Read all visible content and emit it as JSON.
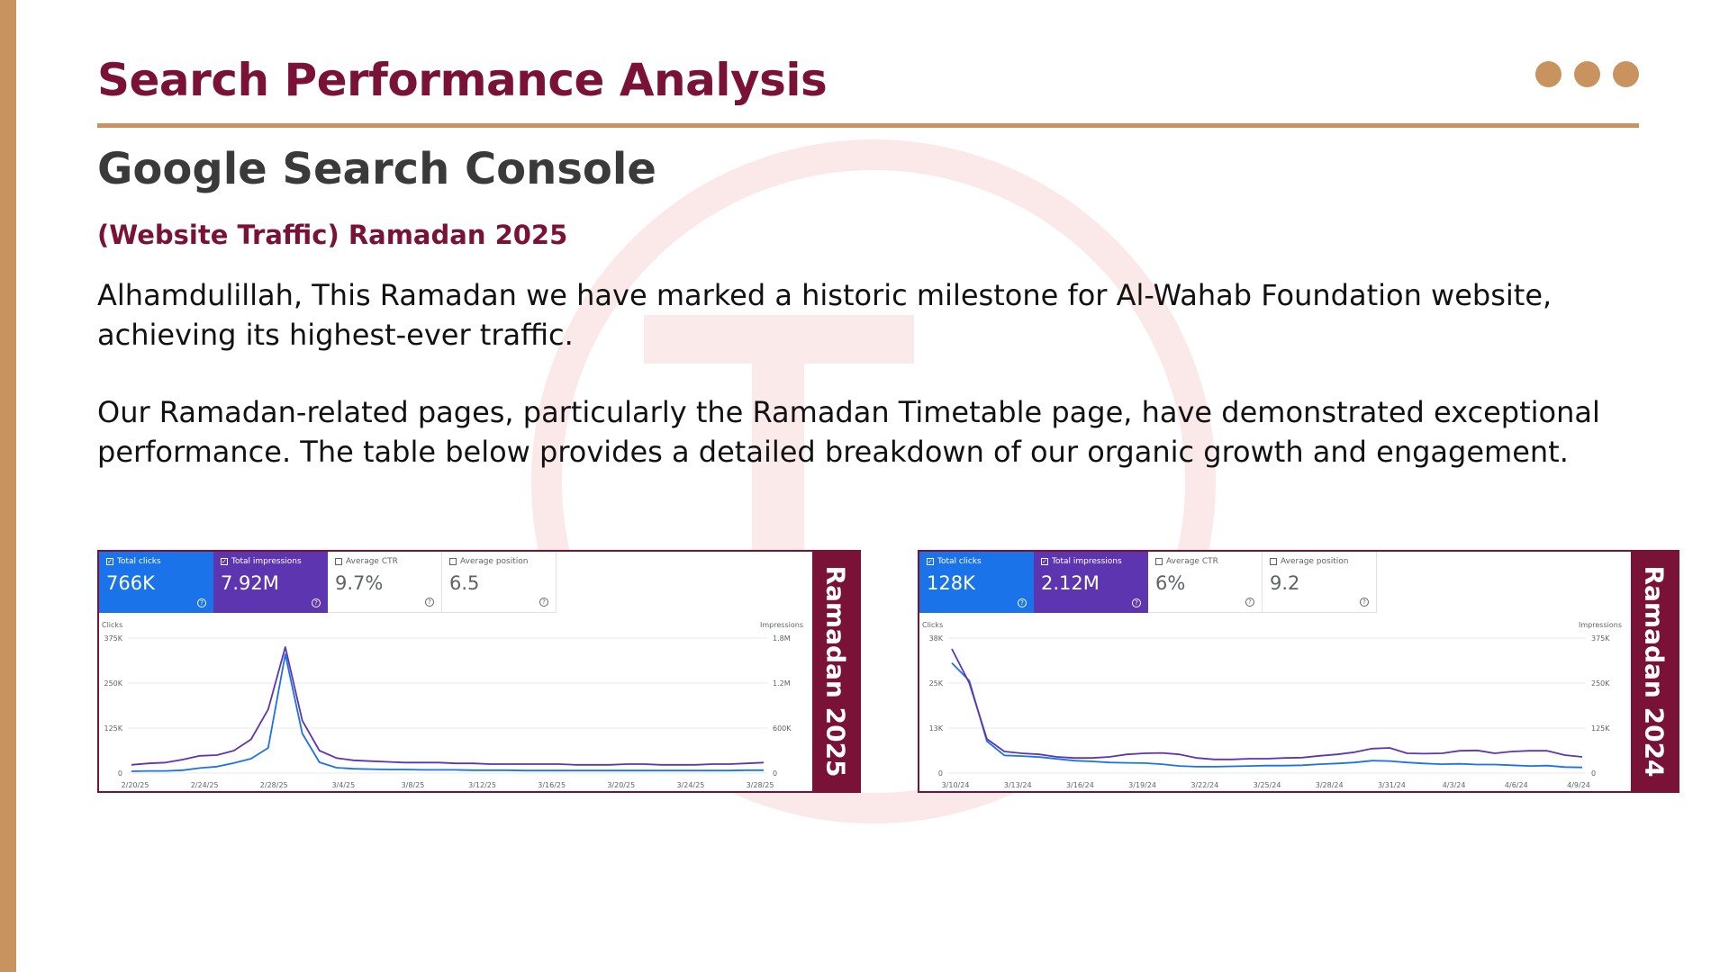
{
  "header": {
    "title": "Search Performance Analysis",
    "subtitle": "Google Search Console",
    "tag": "(Website Traffic) Ramadan 2025"
  },
  "paragraphs": [
    "Alhamdulillah, This Ramadan we have marked a historic milestone for Al-Wahab Foundation website, achieving its highest-ever traffic.",
    "Our Ramadan-related pages, particularly the Ramadan Timetable page, have demonstrated exceptional performance. The table below provides a detailed breakdown of our organic growth and engagement."
  ],
  "colors": {
    "accent": "#7a1238",
    "gold": "#c8935f",
    "clicks": "#1a73e8",
    "impressions": "#5e35b1"
  },
  "panels": [
    {
      "side_label": "Ramadan 2025",
      "metrics": [
        {
          "label": "Total clicks",
          "value": "766K",
          "checked": true
        },
        {
          "label": "Total impressions",
          "value": "7.92M",
          "checked": true
        },
        {
          "label": "Average CTR",
          "value": "9.7%",
          "checked": false
        },
        {
          "label": "Average position",
          "value": "6.5",
          "checked": false
        }
      ]
    },
    {
      "side_label": "Ramadan 2024",
      "metrics": [
        {
          "label": "Total clicks",
          "value": "128K",
          "checked": true
        },
        {
          "label": "Total impressions",
          "value": "2.12M",
          "checked": true
        },
        {
          "label": "Average CTR",
          "value": "6%",
          "checked": false
        },
        {
          "label": "Average position",
          "value": "9.2",
          "checked": false
        }
      ]
    }
  ],
  "chart_data": [
    {
      "type": "line",
      "left_axis": {
        "label": "Clicks",
        "ticks": [
          "375K",
          "250K",
          "125K",
          "0"
        ],
        "ylim": [
          0,
          375000
        ]
      },
      "right_axis": {
        "label": "Impressions",
        "ticks": [
          "1.8M",
          "1.2M",
          "600K",
          "0"
        ],
        "ylim": [
          0,
          1800000
        ]
      },
      "x_ticks": [
        "2/20/25",
        "2/24/25",
        "2/28/25",
        "3/4/25",
        "3/8/25",
        "3/12/25",
        "3/16/25",
        "3/20/25",
        "3/24/25",
        "3/28/25"
      ],
      "series": [
        {
          "name": "Total clicks",
          "axis": "left",
          "values": [
            5000,
            6000,
            6000,
            8000,
            14000,
            18000,
            28000,
            40000,
            70000,
            330000,
            110000,
            30000,
            15000,
            12000,
            11000,
            10000,
            10000,
            9000,
            9000,
            9000,
            8000,
            8000,
            8000,
            7000,
            7000,
            7000,
            7000,
            7000,
            7000,
            7000,
            7000,
            7000,
            7000,
            7000,
            7000,
            7000,
            8000,
            8000
          ]
        },
        {
          "name": "Total impressions",
          "axis": "right",
          "values": [
            110000,
            130000,
            140000,
            180000,
            230000,
            240000,
            300000,
            450000,
            850000,
            1680000,
            700000,
            300000,
            200000,
            170000,
            160000,
            150000,
            140000,
            140000,
            140000,
            130000,
            130000,
            120000,
            120000,
            120000,
            120000,
            120000,
            110000,
            110000,
            110000,
            120000,
            120000,
            110000,
            110000,
            110000,
            120000,
            120000,
            130000,
            140000
          ]
        }
      ]
    },
    {
      "type": "line",
      "left_axis": {
        "label": "Clicks",
        "ticks": [
          "38K",
          "25K",
          "13K",
          "0"
        ],
        "ylim": [
          0,
          38000
        ]
      },
      "right_axis": {
        "label": "Impressions",
        "ticks": [
          "375K",
          "250K",
          "125K",
          "0"
        ],
        "ylim": [
          0,
          375000
        ]
      },
      "x_ticks": [
        "3/10/24",
        "3/13/24",
        "3/16/24",
        "3/19/24",
        "3/22/24",
        "3/25/24",
        "3/28/24",
        "3/31/24",
        "4/3/24",
        "4/6/24",
        "4/9/24"
      ],
      "series": [
        {
          "name": "Total clicks",
          "axis": "left",
          "values": [
            31000,
            26000,
            9000,
            5000,
            4800,
            4500,
            4000,
            3500,
            3300,
            3000,
            2900,
            2800,
            2500,
            2000,
            1800,
            1800,
            1900,
            2000,
            2100,
            2100,
            2200,
            2500,
            2700,
            3000,
            3500,
            3400,
            3000,
            2700,
            2500,
            2600,
            2400,
            2400,
            2200,
            2000,
            2100,
            1700,
            1600
          ]
        },
        {
          "name": "Total impressions",
          "axis": "right",
          "values": [
            345000,
            250000,
            95000,
            60000,
            55000,
            52000,
            45000,
            42000,
            42000,
            45000,
            52000,
            55000,
            56000,
            52000,
            42000,
            38000,
            38000,
            40000,
            40000,
            42000,
            43000,
            48000,
            52000,
            58000,
            68000,
            70000,
            55000,
            54000,
            55000,
            62000,
            63000,
            55000,
            60000,
            62000,
            62000,
            50000,
            45000
          ]
        }
      ]
    }
  ]
}
